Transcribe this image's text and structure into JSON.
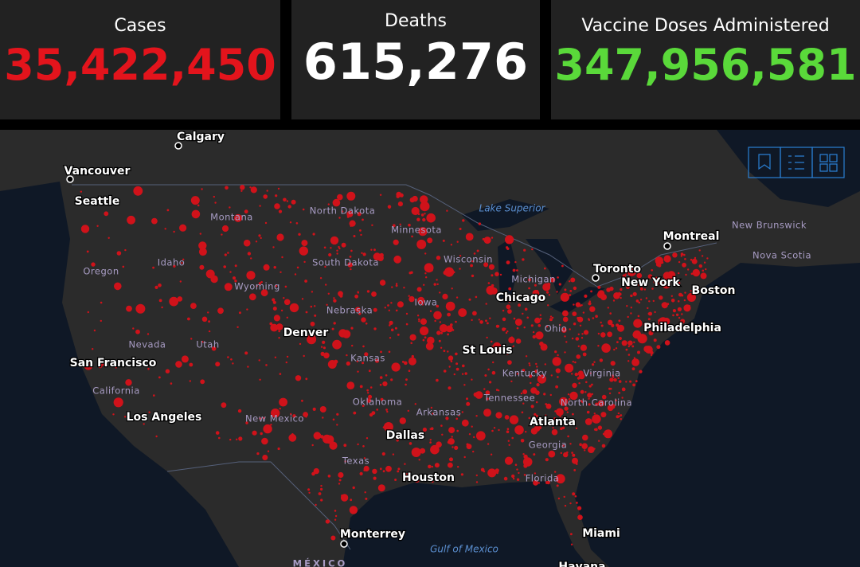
{
  "stats": [
    {
      "label": "Cases",
      "value": "35,422,450"
    },
    {
      "label": "Deaths",
      "value": "615,276"
    },
    {
      "label": "Vaccine Doses Administered",
      "value": "347,956,581"
    }
  ],
  "map": {
    "cities": [
      "Calgary",
      "Vancouver",
      "Seattle",
      "Montreal",
      "Toronto",
      "Chicago",
      "Boston",
      "New York",
      "Philadelphia",
      "Denver",
      "St Louis",
      "San Francisco",
      "Los Angeles",
      "Atlanta",
      "Dallas",
      "Houston",
      "Miami",
      "Monterrey",
      "Havana"
    ],
    "regions": [
      "Montana",
      "North Dakota",
      "Minnesota",
      "New Brunswick",
      "Nova Scotia",
      "Idaho",
      "Oregon",
      "South Dakota",
      "Wisconsin",
      "Michigan",
      "Wyoming",
      "Iowa",
      "Nebraska",
      "Ohio",
      "Nevada",
      "Utah",
      "Kansas",
      "Kentucky",
      "Virginia",
      "California",
      "Tennessee",
      "Oklahoma",
      "North Carolina",
      "Arkansas",
      "New Mexico",
      "Georgia",
      "Texas",
      "Florida",
      "MÉXICO"
    ],
    "water": [
      "Lake Superior",
      "Gulf of Mexico"
    ]
  }
}
